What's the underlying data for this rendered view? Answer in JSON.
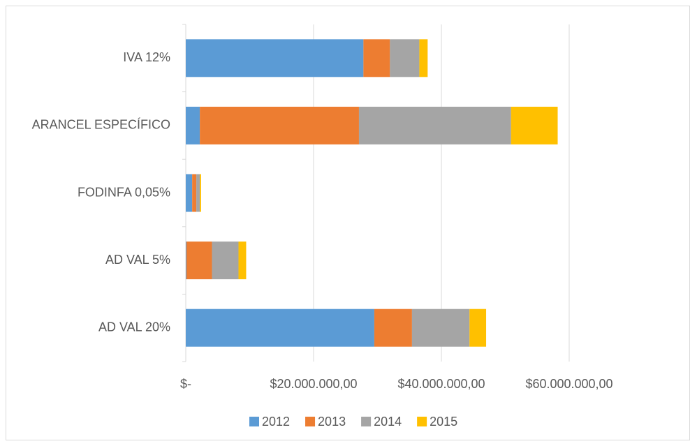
{
  "chart_data": {
    "type": "stacked_barh",
    "categories": [
      "IVA 12%",
      "ARANCEL ESPECÍFICO",
      "FODINFA 0,05%",
      "AD VAL 5%",
      "AD VAL 20%"
    ],
    "series": [
      {
        "name": "2012",
        "color": "#5b9bd5",
        "values": [
          27800000,
          2200000,
          1000000,
          100000,
          29500000
        ]
      },
      {
        "name": "2013",
        "color": "#ed7d31",
        "values": [
          4150000,
          24900000,
          650000,
          4000000,
          5900000
        ]
      },
      {
        "name": "2014",
        "color": "#a5a5a5",
        "values": [
          4600000,
          23800000,
          550000,
          4150000,
          9000000
        ]
      },
      {
        "name": "2015",
        "color": "#ffc000",
        "values": [
          1300000,
          7300000,
          200000,
          1200000,
          2600000
        ]
      }
    ],
    "xlim": [
      0,
      60000000
    ],
    "xticks": [
      {
        "value": 0,
        "label": "$-"
      },
      {
        "value": 20000000,
        "label": "$20.000.000,00"
      },
      {
        "value": 40000000,
        "label": "$40.000.000,00"
      },
      {
        "value": 60000000,
        "label": "$60.000.000,00"
      }
    ],
    "grid": true,
    "legend": "bottom"
  }
}
